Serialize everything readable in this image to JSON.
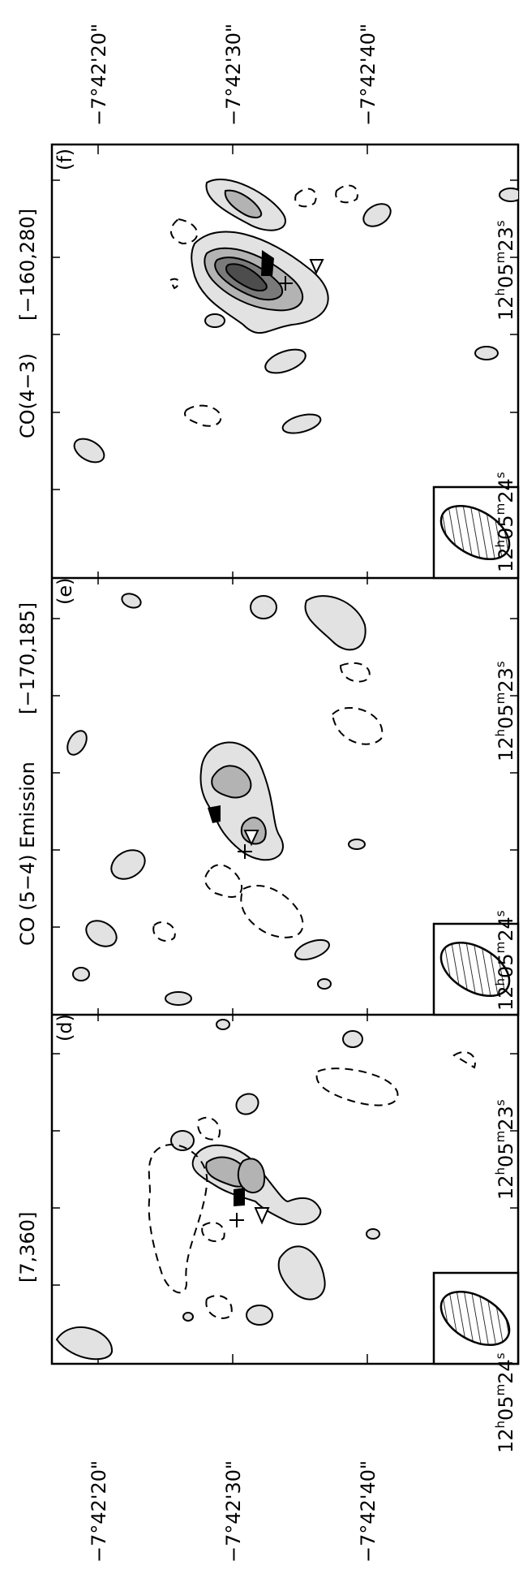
{
  "figure": {
    "dec_ticks": [
      "−7°42'20\"",
      "−7°42'30\"",
      "−7°42'40\""
    ],
    "ra_ticks": [
      "12h05m24s",
      "12h05m23s"
    ],
    "ra_tick_parts": {
      "hours": "12",
      "h": "h",
      "minutes": "05",
      "m": "m",
      "s": "s",
      "sec_24": "24",
      "sec_23": "23"
    },
    "panels": [
      {
        "letter": "(d)",
        "range": "[7,360]"
      },
      {
        "letter": "(e)",
        "range": "[−170,185]"
      },
      {
        "letter": "(f)",
        "range": "[−160,280]"
      }
    ],
    "title_d": "CO (5−4)",
    "title_e": "Emission",
    "title_f": "CO(4−3)"
  }
}
